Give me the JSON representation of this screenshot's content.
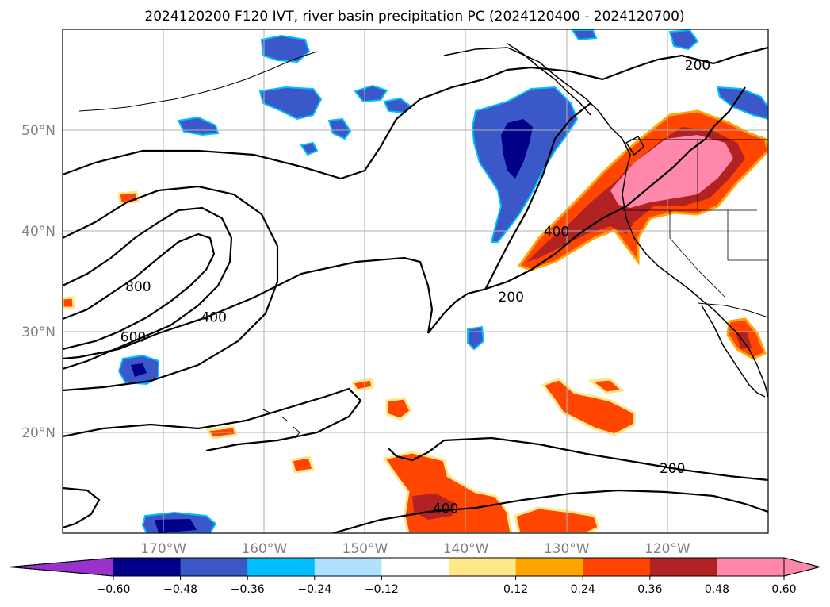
{
  "title": "2024120200 F120 IVT, river basin precipitation PC (2024120400 - 2024120700)",
  "map": {
    "lon_range": [
      -180,
      -110
    ],
    "lat_range": [
      10,
      60
    ],
    "lon_ticks": [
      -170,
      -160,
      -150,
      -140,
      -130,
      -120
    ],
    "lon_tick_labels": [
      "170°W",
      "160°W",
      "150°W",
      "140°W",
      "130°W",
      "120°W"
    ],
    "lat_ticks": [
      20,
      30,
      40,
      50
    ],
    "lat_tick_labels": [
      "20°N",
      "30°N",
      "40°N",
      "50°N"
    ],
    "grid": true,
    "tick_label_color": "#808080"
  },
  "contour_labels": [
    {
      "text": "200",
      "lon": -117,
      "lat": 56
    },
    {
      "text": "400",
      "lon": -131,
      "lat": 39.5
    },
    {
      "text": "200",
      "lon": -135.5,
      "lat": 33
    },
    {
      "text": "800",
      "lon": -172.5,
      "lat": 34
    },
    {
      "text": "600",
      "lon": -173,
      "lat": 29
    },
    {
      "text": "400",
      "lon": -165,
      "lat": 31
    },
    {
      "text": "200",
      "lon": -119.5,
      "lat": 16
    },
    {
      "text": "400",
      "lon": -142,
      "lat": 12
    }
  ],
  "colorbar": {
    "tick_labels": [
      "−0.60",
      "−0.48",
      "−0.36",
      "−0.24",
      "−0.12",
      "0.12",
      "0.24",
      "0.36",
      "0.48",
      "0.60"
    ],
    "under_color": "#9932CC",
    "over_color": "#FF88AA",
    "colors": [
      "#00008B",
      "#3A58C8",
      "#00BFFF",
      "#B0E2FF",
      "#FFFFFF",
      "#FFE88A",
      "#FFA500",
      "#FF4500",
      "#B22222",
      "#FF88AA"
    ]
  }
}
